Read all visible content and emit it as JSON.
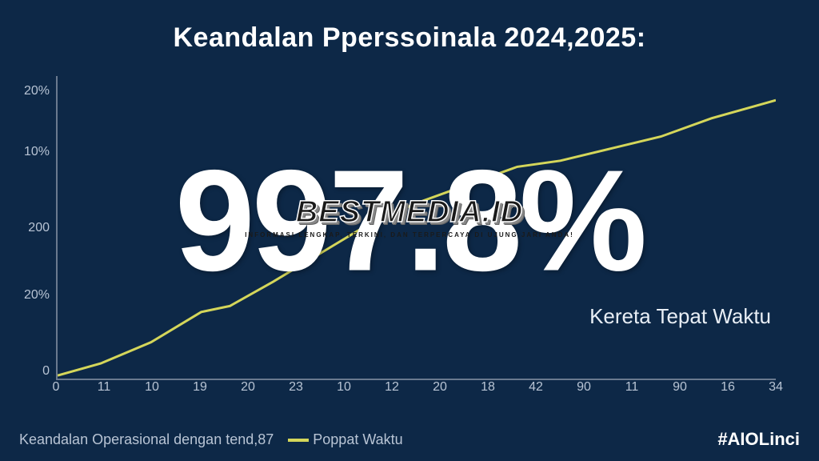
{
  "title": "Keandalan Pperssoinala 2024,2025:",
  "big_number": "997.8%",
  "subtitle": "Kereta Tepat Waktu",
  "chart": {
    "type": "line",
    "background_color": "#0d2847",
    "axis_color": "#6a7a8f",
    "tick_color": "#b8c4d4",
    "tick_fontsize": 16,
    "line_color": "#d4d65a",
    "line_width": 3,
    "y_ticks": [
      {
        "label": "20%",
        "pos": 0.05
      },
      {
        "label": "10%",
        "pos": 0.25
      },
      {
        "label": "200",
        "pos": 0.5
      },
      {
        "label": "20%",
        "pos": 0.72
      },
      {
        "label": "0",
        "pos": 0.97
      }
    ],
    "x_ticks": [
      "0",
      "11",
      "10",
      "19",
      "20",
      "23",
      "10",
      "12",
      "20",
      "18",
      "42",
      "90",
      "11",
      "90",
      "16",
      "34"
    ],
    "series": {
      "name": "Poppat Waktu",
      "points": [
        {
          "x": 0.0,
          "y": 0.99
        },
        {
          "x": 0.06,
          "y": 0.95
        },
        {
          "x": 0.13,
          "y": 0.88
        },
        {
          "x": 0.2,
          "y": 0.78
        },
        {
          "x": 0.24,
          "y": 0.76
        },
        {
          "x": 0.3,
          "y": 0.68
        },
        {
          "x": 0.37,
          "y": 0.58
        },
        {
          "x": 0.44,
          "y": 0.48
        },
        {
          "x": 0.5,
          "y": 0.42
        },
        {
          "x": 0.57,
          "y": 0.36
        },
        {
          "x": 0.64,
          "y": 0.3
        },
        {
          "x": 0.7,
          "y": 0.28
        },
        {
          "x": 0.77,
          "y": 0.24
        },
        {
          "x": 0.84,
          "y": 0.2
        },
        {
          "x": 0.91,
          "y": 0.14
        },
        {
          "x": 1.0,
          "y": 0.08
        }
      ]
    }
  },
  "footer": {
    "left_text": "Keandalan Operasional dengan tend,87",
    "legend_label": "Poppat Waktu",
    "hashtag": "#AIOLinci"
  },
  "watermark": {
    "main": "BESTMEDIA.ID",
    "sub": "INFORMASI LENGKAP, TERKINI, DAN TERPERCAYA DI UJUNG JARI ANDA!"
  },
  "colors": {
    "background": "#0d2847",
    "text_primary": "#ffffff",
    "text_secondary": "#b8c4d4",
    "line": "#d4d65a"
  }
}
